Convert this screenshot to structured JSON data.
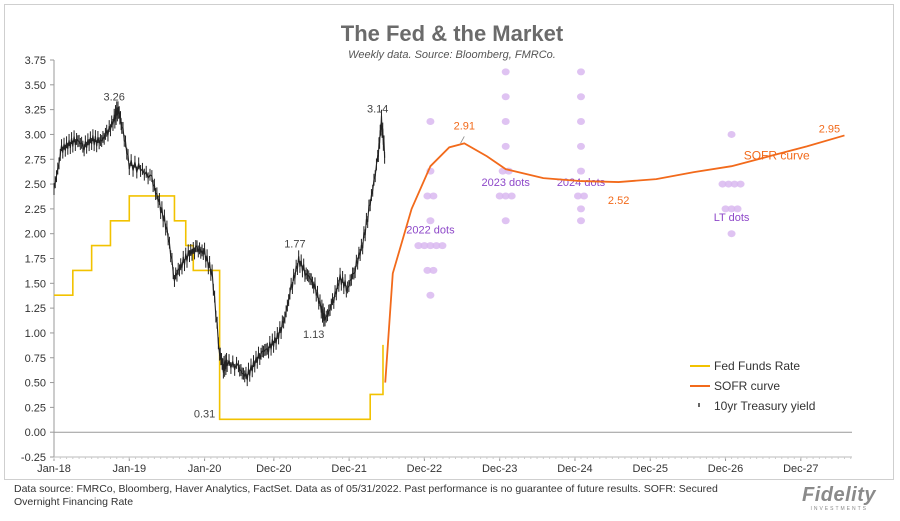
{
  "chart_data": {
    "type": "line",
    "title": "The Fed & the Market",
    "subtitle": "Weekly data.  Source: Bloomberg, FMRCo.",
    "ylim": [
      -0.25,
      3.75
    ],
    "yticks": [
      "3.75",
      "3.50",
      "3.25",
      "3.00",
      "2.75",
      "2.50",
      "2.25",
      "2.00",
      "1.75",
      "1.50",
      "1.25",
      "1.00",
      "0.75",
      "0.50",
      "0.25",
      "0.00",
      "-0.25"
    ],
    "xticks": [
      "Jan-18",
      "Jan-19",
      "Jan-20",
      "Dec-20",
      "Dec-21",
      "Dec-22",
      "Dec-23",
      "Dec-24",
      "Dec-25",
      "Dec-26",
      "Dec-27"
    ],
    "series": [
      {
        "name": "Fed Funds Rate",
        "color": "#f2c200",
        "style": "step",
        "points": [
          [
            2018.0,
            1.38
          ],
          [
            2018.25,
            1.63
          ],
          [
            2018.5,
            1.88
          ],
          [
            2018.75,
            2.13
          ],
          [
            2019.0,
            2.38
          ],
          [
            2019.6,
            2.13
          ],
          [
            2019.75,
            1.88
          ],
          [
            2019.85,
            1.63
          ],
          [
            2020.2,
            0.13
          ],
          [
            2022.2,
            0.38
          ],
          [
            2022.37,
            0.88
          ]
        ]
      },
      {
        "name": "SOFR curve",
        "color": "#f26a1b",
        "style": "line",
        "points": [
          [
            2022.4,
            0.5
          ],
          [
            2022.5,
            1.6
          ],
          [
            2022.75,
            2.25
          ],
          [
            2023.0,
            2.68
          ],
          [
            2023.25,
            2.87
          ],
          [
            2023.45,
            2.91
          ],
          [
            2023.75,
            2.78
          ],
          [
            2024.0,
            2.65
          ],
          [
            2024.5,
            2.56
          ],
          [
            2025.0,
            2.53
          ],
          [
            2025.5,
            2.52
          ],
          [
            2026.0,
            2.55
          ],
          [
            2026.5,
            2.62
          ],
          [
            2027.0,
            2.68
          ],
          [
            2027.5,
            2.78
          ],
          [
            2028.0,
            2.88
          ],
          [
            2028.5,
            2.99
          ]
        ]
      },
      {
        "name": "10yr Treasury yield",
        "color": "#222222",
        "style": "tick",
        "points": [
          [
            2018.0,
            2.45
          ],
          [
            2018.1,
            2.85
          ],
          [
            2018.2,
            2.9
          ],
          [
            2018.3,
            2.95
          ],
          [
            2018.4,
            2.88
          ],
          [
            2018.5,
            2.95
          ],
          [
            2018.6,
            2.92
          ],
          [
            2018.7,
            3.0
          ],
          [
            2018.8,
            3.15
          ],
          [
            2018.85,
            3.26
          ],
          [
            2018.9,
            3.1
          ],
          [
            2019.0,
            2.7
          ],
          [
            2019.15,
            2.65
          ],
          [
            2019.3,
            2.55
          ],
          [
            2019.4,
            2.3
          ],
          [
            2019.5,
            2.05
          ],
          [
            2019.6,
            1.55
          ],
          [
            2019.7,
            1.7
          ],
          [
            2019.8,
            1.8
          ],
          [
            2019.9,
            1.85
          ],
          [
            2020.0,
            1.8
          ],
          [
            2020.1,
            1.6
          ],
          [
            2020.2,
            0.8
          ],
          [
            2020.25,
            0.65
          ],
          [
            2020.3,
            0.7
          ],
          [
            2020.45,
            0.65
          ],
          [
            2020.55,
            0.55
          ],
          [
            2020.65,
            0.68
          ],
          [
            2020.75,
            0.8
          ],
          [
            2020.85,
            0.85
          ],
          [
            2020.95,
            0.93
          ],
          [
            2021.05,
            1.1
          ],
          [
            2021.15,
            1.45
          ],
          [
            2021.25,
            1.73
          ],
          [
            2021.35,
            1.6
          ],
          [
            2021.45,
            1.5
          ],
          [
            2021.55,
            1.25
          ],
          [
            2021.6,
            1.13
          ],
          [
            2021.7,
            1.3
          ],
          [
            2021.8,
            1.55
          ],
          [
            2021.9,
            1.45
          ],
          [
            2022.0,
            1.65
          ],
          [
            2022.1,
            1.9
          ],
          [
            2022.2,
            2.3
          ],
          [
            2022.3,
            2.75
          ],
          [
            2022.35,
            3.14
          ],
          [
            2022.4,
            2.75
          ]
        ]
      }
    ],
    "annotations": [
      "3.26",
      "0.31",
      "1.77",
      "1.13",
      "3.14",
      "2.91",
      "2.52",
      "2.95"
    ],
    "dot_groups": [
      {
        "label": "2022 dots",
        "x": 2023.0,
        "dots": [
          [
            3.13,
            1
          ],
          [
            2.63,
            1
          ],
          [
            2.38,
            2
          ],
          [
            2.13,
            1
          ],
          [
            1.88,
            5
          ],
          [
            1.63,
            2
          ],
          [
            1.38,
            1
          ]
        ]
      },
      {
        "label": "2023 dots",
        "x": 2024.0,
        "dots": [
          [
            3.63,
            1
          ],
          [
            3.38,
            1
          ],
          [
            3.13,
            1
          ],
          [
            2.88,
            1
          ],
          [
            2.63,
            2
          ],
          [
            2.38,
            3
          ],
          [
            2.13,
            1
          ]
        ]
      },
      {
        "label": "2024 dots",
        "x": 2025.0,
        "dots": [
          [
            3.63,
            1
          ],
          [
            3.38,
            1
          ],
          [
            3.13,
            1
          ],
          [
            2.88,
            1
          ],
          [
            2.63,
            1
          ],
          [
            2.38,
            2
          ],
          [
            2.25,
            1
          ],
          [
            2.13,
            1
          ]
        ]
      },
      {
        "label": "LT dots",
        "x": 2027.0,
        "dots": [
          [
            3.0,
            1
          ],
          [
            2.5,
            4
          ],
          [
            2.25,
            3
          ],
          [
            2.0,
            1
          ]
        ]
      }
    ],
    "legend": [
      {
        "label": "Fed Funds Rate"
      },
      {
        "label": "SOFR curve"
      },
      {
        "label": "10yr Treasury yield"
      }
    ],
    "series_label": "SOFR curve",
    "legend_position": "bottom-right"
  },
  "footnote": "Data source: FMRCo, Bloomberg, Haver Analytics, FactSet. Data as of 05/31/2022. Past performance is no guarantee of future results. SOFR: Secured Overnight Financing Rate",
  "brand": {
    "name": "Fidelity",
    "tagline": "INVESTMENTS"
  }
}
